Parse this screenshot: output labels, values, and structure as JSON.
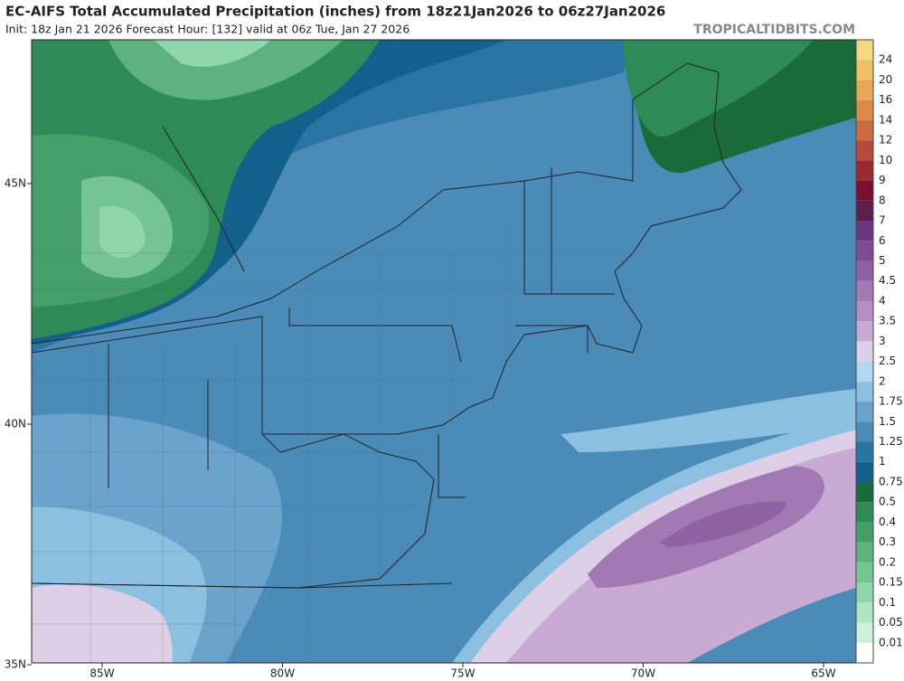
{
  "header": {
    "title": "EC-AIFS Total Accumulated Precipitation (inches) from 18z21Jan2026 to 06z27Jan2026",
    "subtitle": "Init: 18z Jan 21 2026   Forecast Hour: [132]   valid at 06z Tue, Jan 27 2026",
    "brand": "TROPICALTIDBITS.COM"
  },
  "map": {
    "lat_labels": [
      "45N",
      "40N",
      "35N"
    ],
    "lon_labels": [
      "85W",
      "80W",
      "75W",
      "70W",
      "65W"
    ]
  },
  "colorbar": {
    "below_color": "#ffffff",
    "levels": [
      {
        "label": "0.01",
        "color": "#cdf2dc"
      },
      {
        "label": "0.05",
        "color": "#ade6c4"
      },
      {
        "label": "0.1",
        "color": "#90d6ab"
      },
      {
        "label": "0.15",
        "color": "#76c494"
      },
      {
        "label": "0.2",
        "color": "#5db27f"
      },
      {
        "label": "0.3",
        "color": "#449f69"
      },
      {
        "label": "0.4",
        "color": "#2e8a56"
      },
      {
        "label": "0.5",
        "color": "#1b6b3a"
      },
      {
        "label": "0.75",
        "color": "#12608c"
      },
      {
        "label": "1",
        "color": "#2a74a3"
      },
      {
        "label": "1.25",
        "color": "#4a8bb8"
      },
      {
        "label": "1.5",
        "color": "#6aa3cc"
      },
      {
        "label": "1.75",
        "color": "#8cc0e0"
      },
      {
        "label": "2",
        "color": "#b0d8ee"
      },
      {
        "label": "2.5",
        "color": "#dccfe6"
      },
      {
        "label": "3",
        "color": "#c8aad4"
      },
      {
        "label": "3.5",
        "color": "#b58fc4"
      },
      {
        "label": "4",
        "color": "#a379b4"
      },
      {
        "label": "4.5",
        "color": "#9062a4"
      },
      {
        "label": "5",
        "color": "#7d4c94"
      },
      {
        "label": "6",
        "color": "#6a3684"
      },
      {
        "label": "7",
        "color": "#5a1f4a"
      },
      {
        "label": "8",
        "color": "#7a1030"
      },
      {
        "label": "9",
        "color": "#9a2a30"
      },
      {
        "label": "10",
        "color": "#b64a3a"
      },
      {
        "label": "12",
        "color": "#cc6a40"
      },
      {
        "label": "14",
        "color": "#dc8a4a"
      },
      {
        "label": "16",
        "color": "#e8a858"
      },
      {
        "label": "20",
        "color": "#f0c068"
      },
      {
        "label": "24",
        "color": "#f6d880"
      }
    ]
  }
}
